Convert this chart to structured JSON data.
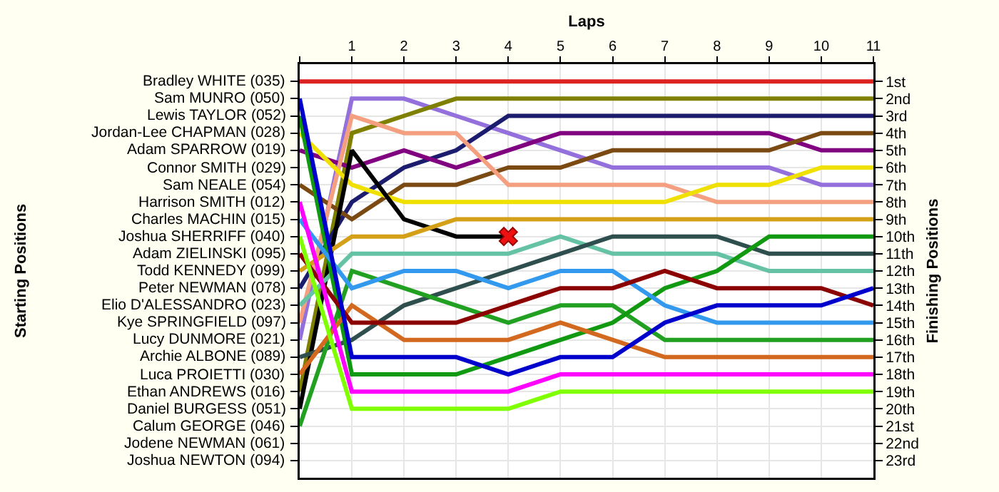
{
  "chart_data": {
    "type": "line",
    "xlabel": "Laps",
    "ylabel": "Finishing Positions",
    "x": [
      0,
      1,
      2,
      3,
      4,
      5,
      6,
      7,
      8,
      9,
      10,
      11
    ],
    "xlim": [
      0,
      11
    ],
    "xticks": [
      {
        "value": 0,
        "label": null
      },
      1,
      2,
      3,
      4,
      5,
      6,
      7,
      8,
      9,
      10,
      11
    ],
    "ylim": [
      24,
      0
    ],
    "annotations": [
      "Starting Positions",
      "Bradley WHITE (035)",
      "Sam MUNRO (050)",
      "Lewis TAYLOR (052)",
      "Jordan-Lee CHAPMAN (028)",
      "Adam SPARROW (019)",
      "Connor SMITH (029)",
      "Sam NEALE (054)",
      "Harrison SMITH (012)",
      "Charles MACHIN (015)",
      "Joshua SHERRIFF (040)",
      "Adam ZIELINSKI (095)",
      "Todd KENNEDY (099)",
      "Peter NEWMAN (078)",
      "Elio D'ALESSANDRO (023)",
      "Kye SPRINGFIELD (097)",
      "Lucy DUNMORE (021)",
      "Archie ALBONE (089)",
      "Luca PROIETTI (030)",
      "Ethan ANDREWS (016)",
      "Daniel BURGESS (051)",
      "Calum GEORGE (046)",
      "Jodene NEWMAN (061)",
      "Joshua NEWTON (094)"
    ],
    "yticks": [
      {
        "value": 1,
        "label": "1st"
      },
      {
        "value": 2,
        "label": "2nd"
      },
      {
        "value": 3,
        "label": "3rd"
      },
      {
        "value": 4,
        "label": "4th"
      },
      {
        "value": 5,
        "label": "5th"
      },
      {
        "value": 6,
        "label": "6th"
      },
      {
        "value": 7,
        "label": "7th"
      },
      {
        "value": 8,
        "label": "8th"
      },
      {
        "value": 9,
        "label": "9th"
      },
      {
        "value": 10,
        "label": "10th"
      },
      {
        "value": 11,
        "label": "11th"
      },
      {
        "value": 12,
        "label": "12th"
      },
      {
        "value": 13,
        "label": "13th"
      },
      {
        "value": 14,
        "label": "14th"
      },
      {
        "value": 15,
        "label": "15th"
      },
      {
        "value": 16,
        "label": "16th"
      },
      {
        "value": 17,
        "label": "17th"
      },
      {
        "value": 18,
        "label": "18th"
      },
      {
        "value": 19,
        "label": "19th"
      },
      {
        "value": 20,
        "label": "20th"
      },
      {
        "value": 21,
        "label": "21st"
      },
      {
        "value": 22,
        "label": "22nd"
      },
      {
        "value": 23,
        "label": "23rd"
      }
    ],
    "grid": true,
    "marker": "none",
    "line_style": "solid",
    "series": [
      {
        "color": "#dd2222",
        "values": [
          1,
          1,
          1,
          1,
          1,
          1,
          1,
          1,
          1,
          1,
          1,
          1
        ]
      },
      {
        "color": "#9370db",
        "values": [
          16,
          2,
          2,
          3,
          4,
          5,
          6,
          6,
          6,
          6,
          7,
          7
        ]
      },
      {
        "color": "#808000",
        "values": [
          19,
          4,
          3,
          2,
          2,
          2,
          2,
          2,
          2,
          2,
          2,
          2
        ]
      },
      {
        "color": "#1c1c6e",
        "values": [
          13,
          8,
          6,
          5,
          3,
          3,
          3,
          3,
          3,
          3,
          3,
          3
        ]
      },
      {
        "color": "#800080",
        "values": [
          5,
          6,
          5,
          6,
          5,
          4,
          4,
          4,
          4,
          4,
          5,
          5
        ]
      },
      {
        "color": "#7b4a12",
        "values": [
          7,
          9,
          7,
          7,
          6,
          6,
          5,
          5,
          5,
          5,
          4,
          4
        ]
      },
      {
        "color": "#f4a080",
        "values": [
          15,
          3,
          4,
          4,
          7,
          7,
          7,
          7,
          8,
          8,
          8,
          8
        ]
      },
      {
        "color": "#f0e000",
        "values": [
          4,
          7,
          8,
          8,
          8,
          8,
          8,
          8,
          7,
          7,
          6,
          6
        ]
      },
      {
        "color": "#000000",
        "values": [
          20,
          5,
          9,
          10,
          10,
          null,
          null,
          null,
          null,
          null,
          null,
          null
        ]
      },
      {
        "color": "#d4a017",
        "values": [
          12,
          10,
          10,
          9,
          9,
          9,
          9,
          9,
          9,
          9,
          9,
          9
        ]
      },
      {
        "color": "#66c2a5",
        "values": [
          14,
          11,
          11,
          11,
          11,
          10,
          11,
          11,
          11,
          12,
          12,
          12
        ]
      },
      {
        "color": "#2f4f4f",
        "values": [
          17,
          16,
          14,
          13,
          12,
          11,
          10,
          10,
          10,
          11,
          11,
          11
        ]
      },
      {
        "color": "#22a022",
        "values": [
          21,
          12,
          13,
          14,
          15,
          14,
          14,
          16,
          16,
          16,
          16,
          16
        ]
      },
      {
        "color": "#119911",
        "values": [
          3,
          18,
          18,
          18,
          17,
          16,
          15,
          13,
          12,
          10,
          10,
          10
        ]
      },
      {
        "color": "#3399ee",
        "values": [
          9,
          13,
          12,
          12,
          13,
          12,
          12,
          14,
          15,
          15,
          15,
          15
        ]
      },
      {
        "color": "#d2691e",
        "values": [
          18,
          14,
          16,
          16,
          16,
          15,
          16,
          17,
          17,
          17,
          17,
          17
        ]
      },
      {
        "color": "#8b0000",
        "values": [
          11,
          15,
          15,
          15,
          14,
          13,
          13,
          12,
          13,
          13,
          13,
          14
        ]
      },
      {
        "color": "#0000cc",
        "values": [
          2,
          17,
          17,
          17,
          18,
          17,
          17,
          15,
          14,
          14,
          14,
          13
        ]
      },
      {
        "color": "#ff00ff",
        "values": [
          8,
          19,
          19,
          19,
          19,
          18,
          18,
          18,
          18,
          18,
          18,
          18
        ]
      },
      {
        "color": "#80ff00",
        "values": [
          10,
          20,
          20,
          20,
          20,
          19,
          19,
          19,
          19,
          19,
          19,
          19
        ]
      },
      {
        "type": "scatter",
        "marker": "cross",
        "color": "#ee1111",
        "x": [
          4
        ],
        "values": [
          10
        ]
      }
    ]
  }
}
